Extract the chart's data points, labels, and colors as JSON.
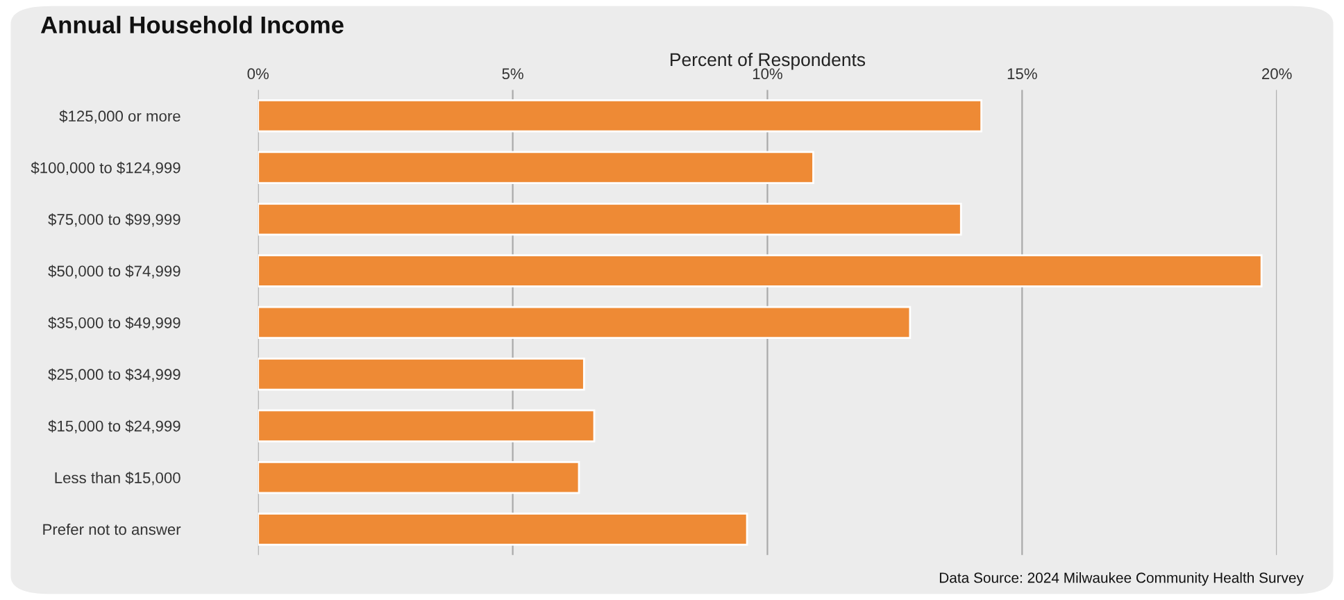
{
  "chart_data": {
    "type": "bar",
    "orientation": "horizontal",
    "title": "Annual Household Income",
    "xlabel": "Percent of Respondents",
    "categories": [
      "$125,000 or more",
      "$100,000 to $124,999",
      "$75,000 to $99,999",
      "$50,000 to $74,999",
      "$35,000 to $49,999",
      "$25,000 to $34,999",
      "$15,000 to $24,999",
      "Less than $15,000",
      "Prefer not to answer"
    ],
    "values": [
      14.2,
      10.9,
      13.8,
      19.7,
      12.8,
      6.4,
      6.6,
      6.3,
      9.6
    ],
    "color": "#ee8a35",
    "xlim": [
      0,
      20
    ],
    "xticks": [
      {
        "value": 0,
        "label": "0%"
      },
      {
        "value": 5,
        "label": "5%"
      },
      {
        "value": 10,
        "label": "10%"
      },
      {
        "value": 15,
        "label": "15%"
      },
      {
        "value": 20,
        "label": "20%"
      }
    ],
    "grid": "x",
    "annotations": [
      "Data Source: 2024 Milwaukee Community Health Survey"
    ]
  }
}
